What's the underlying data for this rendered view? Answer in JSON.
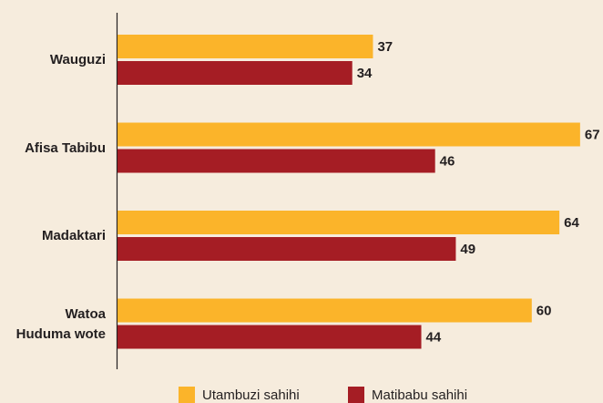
{
  "chart_data": {
    "type": "bar",
    "orientation": "horizontal",
    "categories": [
      "Wauguzi",
      "Afisa Tabibu",
      "Madaktari",
      "Watoa\nHuduma wote"
    ],
    "series": [
      {
        "name": "Utambuzi sahihi",
        "color": "#fbb42a",
        "values": [
          37,
          67,
          64,
          60
        ]
      },
      {
        "name": "Matibabu sahihi",
        "color": "#a51d24",
        "values": [
          34,
          46,
          49,
          44
        ]
      }
    ],
    "legend": "bottom"
  }
}
